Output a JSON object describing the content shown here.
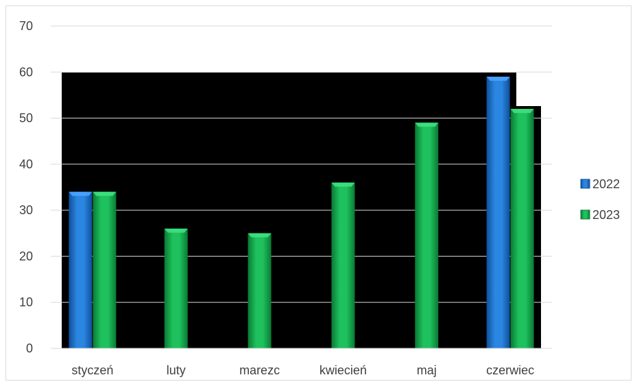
{
  "chart_data": {
    "type": "bar",
    "categories": [
      "styczeń",
      "luty",
      "marezc",
      "kwiecień",
      "maj",
      "czerwiec"
    ],
    "series": [
      {
        "name": "2022",
        "values": [
          34,
          null,
          null,
          null,
          null,
          59
        ],
        "color": "#1f6fc5"
      },
      {
        "name": "2023",
        "values": [
          34,
          26,
          25,
          36,
          49,
          52
        ],
        "color": "#12a64b"
      }
    ],
    "ylim": [
      0,
      70
    ],
    "yticks": [
      0,
      10,
      20,
      30,
      40,
      50,
      60,
      70
    ],
    "grid": true,
    "legend_position": "right",
    "plot_background_overlay": "#000000"
  }
}
